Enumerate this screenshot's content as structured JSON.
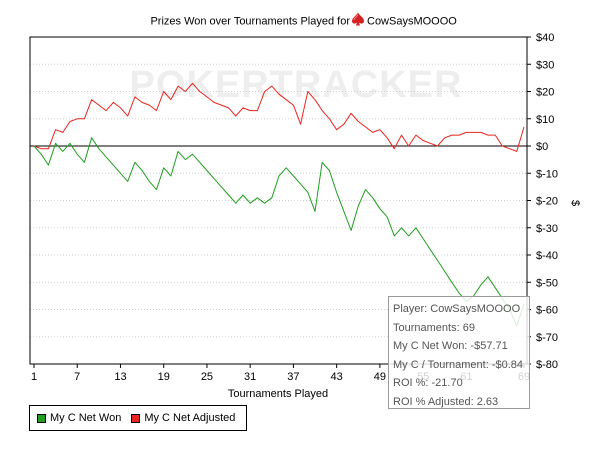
{
  "chart_data": {
    "type": "line",
    "title_prefix": "Prizes Won over Tournaments Played for",
    "player": "CowSaysMOOOO",
    "xlabel": "Tournaments Played",
    "ylabel": "$",
    "watermark": "POKERTRACKER",
    "xlim": [
      1,
      69
    ],
    "ylim": [
      -80,
      40
    ],
    "x_ticks": [
      1,
      7,
      13,
      19,
      25,
      31,
      37,
      43,
      49,
      55,
      61,
      69
    ],
    "x_tick_labels": [
      "1",
      "7",
      "13",
      "19",
      "25",
      "31",
      "37",
      "43",
      "49",
      "55",
      "61",
      "69"
    ],
    "y_ticks": [
      40,
      30,
      20,
      10,
      0,
      -10,
      -20,
      -30,
      -40,
      -50,
      -60,
      -70,
      -80
    ],
    "y_tick_labels": [
      "$40",
      "$30",
      "$20",
      "$10",
      "$0",
      "$-10",
      "$-20",
      "$-30",
      "$-40",
      "$-50",
      "$-60",
      "$-70",
      "$-80"
    ],
    "grid": "horizontal dotted",
    "legend_position": "bottom-left",
    "series": [
      {
        "name": "My C Net Won",
        "color": "#1f9e1f",
        "x": [
          1,
          2,
          3,
          4,
          5,
          6,
          7,
          8,
          9,
          10,
          11,
          12,
          13,
          14,
          15,
          16,
          17,
          18,
          19,
          20,
          21,
          22,
          23,
          24,
          25,
          26,
          27,
          28,
          29,
          30,
          31,
          32,
          33,
          34,
          35,
          36,
          37,
          38,
          39,
          40,
          41,
          42,
          43,
          44,
          45,
          46,
          47,
          48,
          49,
          50,
          51,
          52,
          53,
          54,
          55,
          56,
          57,
          58,
          59,
          60,
          61,
          62,
          63,
          64,
          65,
          66,
          67,
          68,
          69
        ],
        "values": [
          0,
          -3,
          -7,
          1,
          -2,
          1,
          -3,
          -6,
          3,
          -1,
          -4,
          -7,
          -10,
          -13,
          -6,
          -9,
          -13,
          -16,
          -8,
          -11,
          -2,
          -5,
          -3,
          -6,
          -9,
          -12,
          -15,
          -18,
          -21,
          -18,
          -21,
          -19,
          -21,
          -19,
          -11,
          -8,
          -11,
          -14,
          -17,
          -24,
          -6,
          -9,
          -17,
          -24,
          -31,
          -22,
          -16,
          -19,
          -23,
          -26,
          -33,
          -30,
          -33,
          -30,
          -34,
          -38,
          -42,
          -46,
          -50,
          -54,
          -57,
          -55,
          -51,
          -48,
          -52,
          -56,
          -60,
          -66,
          -58
        ]
      },
      {
        "name": "My C Net Adjusted",
        "color": "#e8251f",
        "x": [
          1,
          2,
          3,
          4,
          5,
          6,
          7,
          8,
          9,
          10,
          11,
          12,
          13,
          14,
          15,
          16,
          17,
          18,
          19,
          20,
          21,
          22,
          23,
          24,
          25,
          26,
          27,
          28,
          29,
          30,
          31,
          32,
          33,
          34,
          35,
          36,
          37,
          38,
          39,
          40,
          41,
          42,
          43,
          44,
          45,
          46,
          47,
          48,
          49,
          50,
          51,
          52,
          53,
          54,
          55,
          56,
          57,
          58,
          59,
          60,
          61,
          62,
          63,
          64,
          65,
          66,
          67,
          68,
          69
        ],
        "values": [
          0,
          -1,
          -1,
          6,
          5,
          9,
          10,
          10,
          17,
          15,
          13,
          16,
          14,
          11,
          18,
          16,
          15,
          13,
          20,
          17,
          22,
          20,
          23,
          20,
          18,
          16,
          15,
          14,
          11,
          14,
          13,
          13,
          20,
          22,
          19,
          17,
          15,
          8,
          20,
          17,
          13,
          10,
          6,
          8,
          12,
          9,
          7,
          5,
          6,
          3,
          -1,
          4,
          0,
          4,
          2,
          1,
          0,
          3,
          4,
          4,
          5,
          5,
          5,
          4,
          4,
          0,
          -1,
          -2,
          7
        ]
      }
    ],
    "tooltip": {
      "player": "Player: CowSaysMOOOO",
      "tournaments": "Tournaments: 69",
      "net_won": "My C Net Won: -$57.71",
      "per_tournament": "My C / Tournament: -$0.84",
      "roi": "ROI %: -21.70",
      "roi_adjusted": "ROI % Adjusted: 2.63"
    }
  }
}
